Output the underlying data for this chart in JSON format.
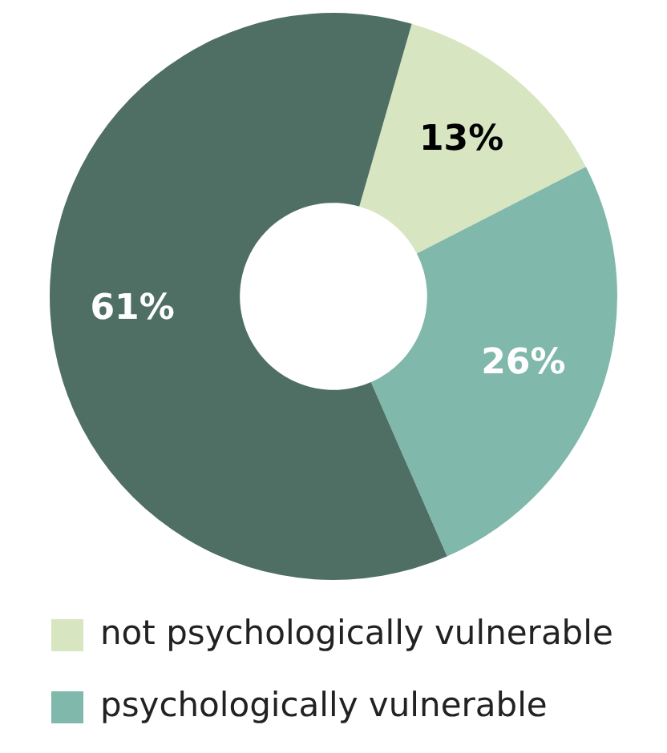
{
  "chart_data": {
    "type": "donut",
    "categories": [
      "not psychologically vulnerable",
      "psychologically vulnerable",
      null
    ],
    "values": [
      13,
      26,
      61
    ],
    "colors": [
      "#d7e5c1",
      "#80b8ab",
      "#4f6f64"
    ],
    "value_labels": [
      "13%",
      "26%",
      "61%"
    ],
    "legend": "bottom"
  }
}
